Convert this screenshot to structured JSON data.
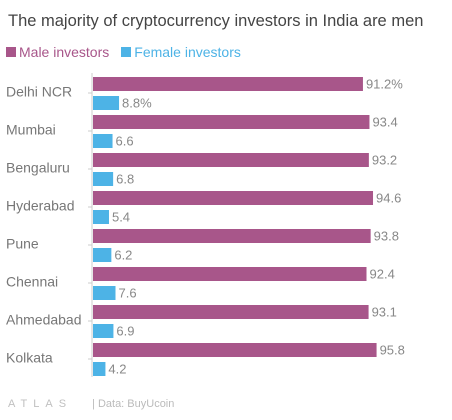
{
  "chart_data": {
    "type": "bar",
    "orientation": "horizontal",
    "title": "The majority of cryptocurrency investors in India are men",
    "categories": [
      "Delhi NCR",
      "Mumbai",
      "Bengaluru",
      "Hyderabad",
      "Pune",
      "Chennai",
      "Ahmedabad",
      "Kolkata"
    ],
    "series": [
      {
        "name": "Male investors",
        "color": "#a8568a",
        "values": [
          91.2,
          93.4,
          93.2,
          94.6,
          93.8,
          92.4,
          93.1,
          95.8
        ],
        "labels": [
          "91.2%",
          "93.4",
          "93.2",
          "94.6",
          "93.8",
          "92.4",
          "93.1",
          "95.8"
        ]
      },
      {
        "name": "Female investors",
        "color": "#4db3e6",
        "values": [
          8.8,
          6.6,
          6.8,
          5.4,
          6.2,
          7.6,
          6.9,
          4.2
        ],
        "labels": [
          "8.8%",
          "6.6",
          "6.8",
          "5.4",
          "6.2",
          "7.6",
          "6.9",
          "4.2"
        ]
      }
    ],
    "xlim": [
      0,
      100
    ],
    "grid": false,
    "legend_position": "top-left"
  },
  "footer": {
    "brand": "ATLAS",
    "source": "| Data: BuyUcoin"
  }
}
